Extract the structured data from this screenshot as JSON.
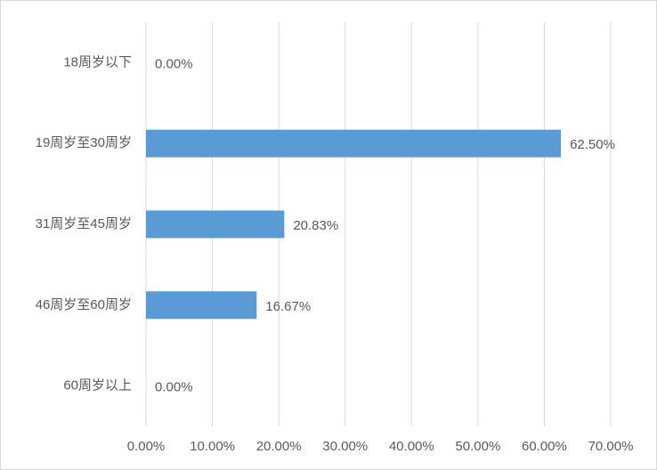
{
  "chart_data": {
    "type": "bar",
    "orientation": "horizontal",
    "categories": [
      "18周岁以下",
      "19周岁至30周岁",
      "31周岁至45周岁",
      "46周岁至60周岁",
      "60周岁以上"
    ],
    "values": [
      0,
      62.5,
      20.83,
      16.67,
      0
    ],
    "value_labels": [
      "0.00%",
      "62.50%",
      "20.83%",
      "16.67%",
      "0.00%"
    ],
    "color": "#5b9bd5",
    "xlim": [
      0,
      70
    ],
    "xticks": [
      {
        "value": 0,
        "label": "0.00%"
      },
      {
        "value": 10,
        "label": "10.00%"
      },
      {
        "value": 20,
        "label": "20.00%"
      },
      {
        "value": 30,
        "label": "30.00%"
      },
      {
        "value": 40,
        "label": "40.00%"
      },
      {
        "value": 50,
        "label": "50.00%"
      },
      {
        "value": 60,
        "label": "60.00%"
      },
      {
        "value": 70,
        "label": "70.00%"
      }
    ],
    "grid": true
  }
}
